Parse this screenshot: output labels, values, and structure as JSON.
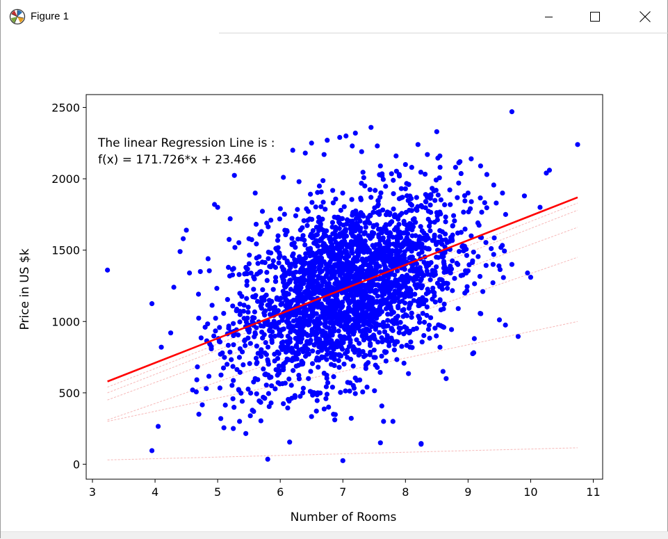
{
  "window": {
    "title": "Figure 1"
  },
  "chart_data": {
    "type": "scatter",
    "xlabel": "Number of Rooms",
    "ylabel": "Price in US $k",
    "xlim": [
      2.9,
      11.15
    ],
    "ylim": [
      -105,
      2590
    ],
    "xticks": [
      3,
      4,
      5,
      6,
      7,
      8,
      9,
      10,
      11
    ],
    "yticks": [
      0,
      500,
      1000,
      1500,
      2000,
      2500
    ],
    "grid": false,
    "annotation": [
      "The linear Regression Line is :",
      "f(x) = 171.726*x + 23.466"
    ],
    "series": [
      {
        "kind": "scatter",
        "color": "#0000ff",
        "points": [
          [
            3.24,
            1360
          ],
          [
            3.95,
            1125
          ],
          [
            3.95,
            95
          ],
          [
            4.05,
            265
          ],
          [
            4.1,
            820
          ],
          [
            4.25,
            920
          ],
          [
            4.3,
            1240
          ],
          [
            4.4,
            1490
          ],
          [
            4.45,
            1580
          ],
          [
            4.5,
            1640
          ],
          [
            4.55,
            1340
          ],
          [
            4.6,
            520
          ],
          [
            4.7,
            350
          ],
          [
            4.8,
            960
          ],
          [
            4.95,
            1820
          ],
          [
            5.0,
            1800
          ],
          [
            5.05,
            320
          ],
          [
            5.1,
            255
          ],
          [
            5.15,
            700
          ],
          [
            5.2,
            1720
          ],
          [
            5.25,
            250
          ],
          [
            5.35,
            300
          ],
          [
            5.45,
            215
          ],
          [
            5.5,
            1580
          ],
          [
            5.6,
            1900
          ],
          [
            5.6,
            600
          ],
          [
            5.7,
            1630
          ],
          [
            5.8,
            35
          ],
          [
            5.85,
            1710
          ],
          [
            5.95,
            1500
          ],
          [
            6.05,
            2010
          ],
          [
            6.15,
            155
          ],
          [
            6.2,
            2200
          ],
          [
            6.3,
            1980
          ],
          [
            6.4,
            2180
          ],
          [
            6.45,
            600
          ],
          [
            6.5,
            2250
          ],
          [
            6.6,
            500
          ],
          [
            6.7,
            2170
          ],
          [
            6.75,
            2270
          ],
          [
            6.8,
            1200
          ],
          [
            6.85,
            350
          ],
          [
            6.95,
            2290
          ],
          [
            7.0,
            25
          ],
          [
            7.05,
            2300
          ],
          [
            7.15,
            2230
          ],
          [
            7.2,
            2320
          ],
          [
            7.3,
            2190
          ],
          [
            7.35,
            1950
          ],
          [
            7.45,
            2360
          ],
          [
            7.5,
            800
          ],
          [
            7.55,
            2230
          ],
          [
            7.6,
            2090
          ],
          [
            7.65,
            300
          ],
          [
            7.8,
            300
          ],
          [
            7.85,
            2160
          ],
          [
            7.9,
            2030
          ],
          [
            8.0,
            2100
          ],
          [
            8.1,
            2080
          ],
          [
            8.2,
            2240
          ],
          [
            8.25,
            145
          ],
          [
            8.35,
            2170
          ],
          [
            8.5,
            2330
          ],
          [
            8.55,
            2160
          ],
          [
            8.6,
            650
          ],
          [
            8.65,
            600
          ],
          [
            8.8,
            2080
          ],
          [
            8.85,
            1970
          ],
          [
            9.05,
            2140
          ],
          [
            9.0,
            1900
          ],
          [
            9.1,
            880
          ],
          [
            9.2,
            2090
          ],
          [
            9.3,
            2030
          ],
          [
            9.4,
            1400
          ],
          [
            9.45,
            1830
          ],
          [
            9.55,
            1900
          ],
          [
            9.6,
            1750
          ],
          [
            9.7,
            1400
          ],
          [
            9.7,
            2470
          ],
          [
            9.8,
            895
          ],
          [
            9.9,
            1880
          ],
          [
            9.95,
            1340
          ],
          [
            10.0,
            1310
          ],
          [
            10.15,
            1800
          ],
          [
            10.25,
            2040
          ],
          [
            10.3,
            2060
          ],
          [
            10.75,
            2240
          ],
          [
            7.6,
            150
          ],
          [
            8.25,
            140
          ],
          [
            6.7,
            1500
          ],
          [
            7.2,
            1300
          ],
          [
            6.3,
            1200
          ],
          [
            7.8,
            1400
          ]
        ]
      },
      {
        "kind": "line",
        "name": "",
        "color": "#ff0000",
        "x": [
          3.24,
          10.75
        ],
        "y": [
          579.8,
          1869.5
        ]
      }
    ],
    "faint_lines": [
      {
        "x": [
          3.24,
          10.75
        ],
        "y": [
          540,
          1830
        ]
      },
      {
        "x": [
          3.24,
          10.75
        ],
        "y": [
          500,
          1780
        ]
      },
      {
        "x": [
          3.24,
          10.75
        ],
        "y": [
          450,
          1660
        ]
      },
      {
        "x": [
          3.24,
          10.75
        ],
        "y": [
          310,
          1450
        ]
      },
      {
        "x": [
          3.24,
          10.75
        ],
        "y": [
          300,
          1000
        ]
      },
      {
        "x": [
          3.24,
          10.75
        ],
        "y": [
          30,
          115
        ]
      }
    ]
  }
}
